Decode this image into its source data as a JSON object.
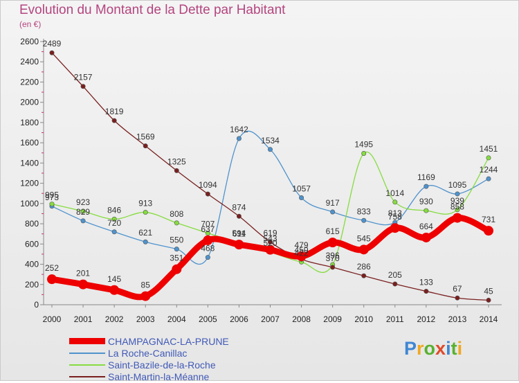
{
  "title": "Evolution du Montant de la Dette par Habitant",
  "unit": "(en €)",
  "brand": "Proxiti",
  "chart_data": {
    "type": "line",
    "title": "Evolution du Montant de la Dette par Habitant",
    "ylabel": "(en €)",
    "xlabel": "",
    "x": [
      2000,
      2001,
      2002,
      2003,
      2004,
      2005,
      2006,
      2007,
      2008,
      2009,
      2010,
      2011,
      2012,
      2013,
      2014
    ],
    "ylim": [
      0,
      2600
    ],
    "ytick_step": 200,
    "legend_position": "bottom-left",
    "series": [
      {
        "name": "CHAMPAGNAC-LA-PRUNE",
        "color": "#ee0000",
        "emphasis": true,
        "values": [
          252,
          201,
          145,
          85,
          351,
          637,
          594,
          543,
          479,
          615,
          545,
          758,
          664,
          858,
          731
        ]
      },
      {
        "name": "La Roche-Canillac",
        "color": "#4f93cd",
        "emphasis": false,
        "values": [
          973,
          829,
          720,
          621,
          550,
          468,
          1642,
          1534,
          1057,
          917,
          833,
          813,
          1169,
          1095,
          1244
        ]
      },
      {
        "name": "Saint-Bazile-de-la-Roche",
        "color": "#86dc40",
        "emphasis": false,
        "values": [
          995,
          923,
          846,
          913,
          808,
          707,
          611,
          520,
          422,
          396,
          1495,
          1014,
          930,
          939,
          1451
        ]
      },
      {
        "name": "Saint-Martin-la-Méanne",
        "color": "#7a1f1f",
        "emphasis": false,
        "values": [
          2489,
          2157,
          1819,
          1569,
          1325,
          1094,
          874,
          619,
          450,
          370,
          286,
          205,
          133,
          67,
          45
        ]
      }
    ]
  }
}
